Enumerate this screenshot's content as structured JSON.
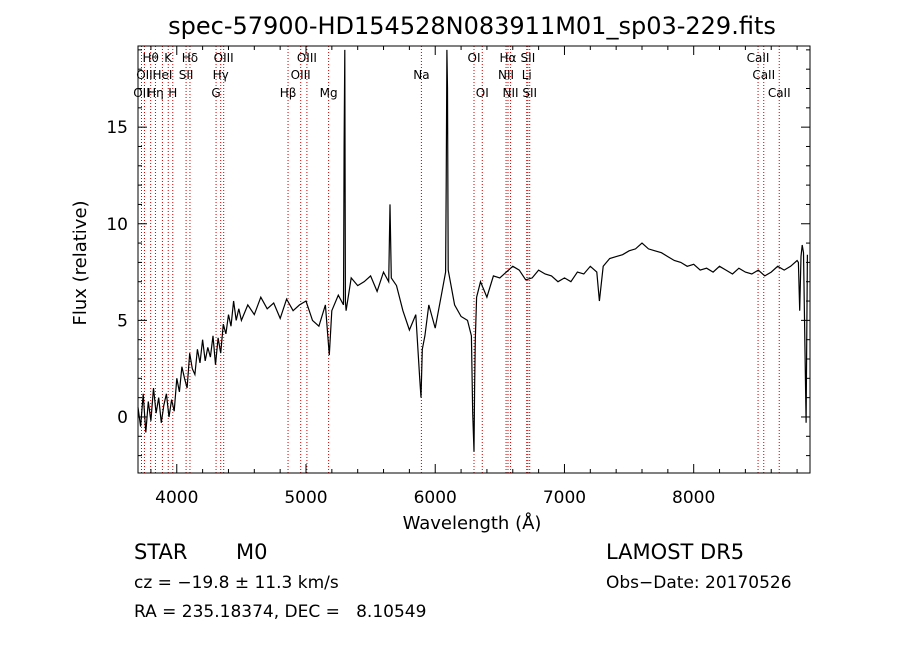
{
  "chart_data": {
    "type": "line",
    "title": "spec-57900-HD154528N083911M01_sp03-229.fits",
    "xlabel": "Wavelength (Å)",
    "ylabel": "Flux (relative)",
    "xlim": [
      3700,
      8900
    ],
    "ylim": [
      -2.9,
      19.2
    ],
    "xticks": [
      4000,
      5000,
      6000,
      7000,
      8000
    ],
    "yticks": [
      0,
      5,
      10,
      15
    ],
    "grid": false,
    "series": [
      {
        "x": [
          3700,
          3720,
          3740,
          3760,
          3780,
          3800,
          3820,
          3840,
          3860,
          3880,
          3900,
          3920,
          3940,
          3960,
          3980,
          4000,
          4020,
          4040,
          4060,
          4080,
          4100,
          4120,
          4140,
          4160,
          4180,
          4200,
          4220,
          4240,
          4260,
          4280,
          4300,
          4320,
          4340,
          4360,
          4380,
          4400,
          4420,
          4440,
          4460,
          4480,
          4500,
          4550,
          4600,
          4650,
          4700,
          4750,
          4800,
          4850,
          4900,
          4950,
          5000,
          5050,
          5100,
          5150,
          5180,
          5200,
          5250,
          5290,
          5295,
          5300,
          5305,
          5310,
          5350,
          5400,
          5450,
          5500,
          5550,
          5600,
          5640,
          5650,
          5660,
          5700,
          5750,
          5800,
          5850,
          5880,
          5890,
          5900,
          5920,
          5950,
          6000,
          6050,
          6080,
          6085,
          6090,
          6095,
          6100,
          6150,
          6200,
          6250,
          6280,
          6290,
          6300,
          6305,
          6310,
          6320,
          6350,
          6400,
          6450,
          6500,
          6550,
          6600,
          6650,
          6700,
          6750,
          6800,
          6850,
          6900,
          6950,
          7000,
          7050,
          7100,
          7150,
          7200,
          7250,
          7270,
          7300,
          7350,
          7400,
          7450,
          7500,
          7550,
          7600,
          7650,
          7700,
          7750,
          7800,
          7850,
          7900,
          7950,
          8000,
          8050,
          8100,
          8150,
          8200,
          8250,
          8300,
          8350,
          8400,
          8450,
          8500,
          8550,
          8600,
          8650,
          8700,
          8750,
          8800,
          8810,
          8820,
          8830,
          8840,
          8850,
          8870,
          8880
        ],
        "y": [
          0.5,
          -0.5,
          1.2,
          -0.8,
          0.8,
          -0.2,
          1.5,
          0.2,
          1.0,
          -0.3,
          0.6,
          1.2,
          0.0,
          0.9,
          0.3,
          2.0,
          1.3,
          2.6,
          2.0,
          1.5,
          3.3,
          2.5,
          2.2,
          3.5,
          2.8,
          4.0,
          2.9,
          3.6,
          3.1,
          4.2,
          2.7,
          4.1,
          3.3,
          4.8,
          4.3,
          5.3,
          4.7,
          6.0,
          5.0,
          5.6,
          5.0,
          5.8,
          5.3,
          6.2,
          5.6,
          5.9,
          5.1,
          6.1,
          5.5,
          5.8,
          6.0,
          5.0,
          4.7,
          5.8,
          3.2,
          5.5,
          6.3,
          5.8,
          14.0,
          19.0,
          6.0,
          5.5,
          7.2,
          6.8,
          7.0,
          7.3,
          6.5,
          7.5,
          7.0,
          11.0,
          7.2,
          6.8,
          5.5,
          4.5,
          5.3,
          2.0,
          1.0,
          3.5,
          4.2,
          5.8,
          4.6,
          6.4,
          7.5,
          12.0,
          19.0,
          17.0,
          7.6,
          5.8,
          5.2,
          5.0,
          4.2,
          0.2,
          -1.8,
          1.5,
          4.0,
          6.2,
          7.0,
          6.2,
          7.3,
          7.2,
          7.5,
          7.8,
          7.6,
          7.1,
          7.2,
          7.6,
          7.4,
          7.3,
          7.0,
          7.2,
          7.0,
          7.5,
          7.4,
          7.8,
          7.5,
          6.0,
          7.8,
          8.2,
          8.3,
          8.4,
          8.6,
          8.7,
          9.0,
          8.7,
          8.6,
          8.5,
          8.3,
          8.1,
          8.0,
          7.8,
          7.9,
          7.6,
          7.7,
          7.5,
          7.8,
          7.6,
          7.4,
          7.7,
          7.5,
          7.4,
          7.6,
          7.3,
          7.5,
          7.8,
          7.6,
          7.8,
          8.1,
          8.0,
          5.5,
          8.3,
          8.9,
          8.5,
          -0.3,
          8.4
        ]
      }
    ],
    "line_markers": [
      {
        "wave": 3727,
        "labels": [
          "OII"
        ],
        "row": 2
      },
      {
        "wave": 3750,
        "labels": [
          "OII"
        ],
        "row": 1
      },
      {
        "wave": 3798,
        "labels": [
          "Hθ"
        ],
        "row": 0
      },
      {
        "wave": 3835,
        "labels": [
          "Hη"
        ],
        "row": 2
      },
      {
        "wave": 3889,
        "labels": [
          "HeI"
        ],
        "row": 1
      },
      {
        "wave": 3934,
        "labels": [
          "K"
        ],
        "row": 0
      },
      {
        "wave": 3969,
        "labels": [
          "H"
        ],
        "row": 2
      },
      {
        "wave": 4072,
        "labels": [
          "SII"
        ],
        "row": 1
      },
      {
        "wave": 4102,
        "labels": [
          "Hδ"
        ],
        "row": 0
      },
      {
        "wave": 4304,
        "labels": [
          "G"
        ],
        "row": 2
      },
      {
        "wave": 4340,
        "labels": [
          "Hγ"
        ],
        "row": 1
      },
      {
        "wave": 4363,
        "labels": [
          "OIII"
        ],
        "row": 0
      },
      {
        "wave": 4861,
        "labels": [
          "Hβ"
        ],
        "row": 2
      },
      {
        "wave": 4959,
        "labels": [
          "OIII"
        ],
        "row": 1
      },
      {
        "wave": 5007,
        "labels": [
          "OIII"
        ],
        "row": 0
      },
      {
        "wave": 5175,
        "labels": [
          "Mg"
        ],
        "row": 2
      },
      {
        "wave": 5893,
        "labels": [
          "Na"
        ],
        "row": 1
      },
      {
        "wave": 6300,
        "labels": [
          "OI"
        ],
        "row": 0
      },
      {
        "wave": 6364,
        "labels": [
          "OI"
        ],
        "row": 2
      },
      {
        "wave": 6548,
        "labels": [
          "NII"
        ],
        "row": 1
      },
      {
        "wave": 6563,
        "labels": [
          "Hα"
        ],
        "row": 0
      },
      {
        "wave": 6583,
        "labels": [
          "NII"
        ],
        "row": 2
      },
      {
        "wave": 6708,
        "labels": [
          "Li"
        ],
        "row": 1
      },
      {
        "wave": 6717,
        "labels": [
          "SII"
        ],
        "row": 0
      },
      {
        "wave": 6731,
        "labels": [
          "SII"
        ],
        "row": 2
      },
      {
        "wave": 8498,
        "labels": [
          "CaII"
        ],
        "row": 0
      },
      {
        "wave": 8542,
        "labels": [
          "CaII"
        ],
        "row": 1
      },
      {
        "wave": 8662,
        "labels": [
          "CaII"
        ],
        "row": 2
      }
    ],
    "line_marker_color": "#cc0000"
  },
  "info": {
    "class_label": "STAR",
    "subclass_label": "M0",
    "survey": "LAMOST DR5",
    "cz": "cz = −19.8 ± 11.3 km/s",
    "obs_date": "Obs−Date: 20170526",
    "radec": "RA = 235.18374, DEC =   8.10549"
  }
}
